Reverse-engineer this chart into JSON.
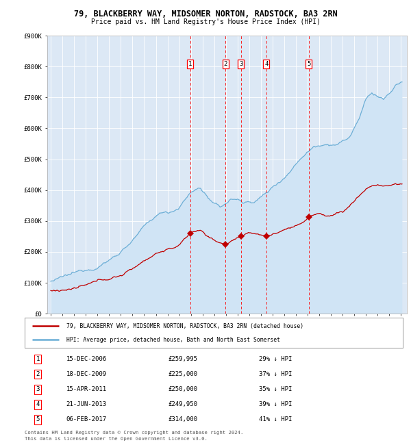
{
  "title": "79, BLACKBERRY WAY, MIDSOMER NORTON, RADSTOCK, BA3 2RN",
  "subtitle": "Price paid vs. HM Land Registry's House Price Index (HPI)",
  "legend_line1": "79, BLACKBERRY WAY, MIDSOMER NORTON, RADSTOCK, BA3 2RN (detached house)",
  "legend_line2": "HPI: Average price, detached house, Bath and North East Somerset",
  "footnote1": "Contains HM Land Registry data © Crown copyright and database right 2024.",
  "footnote2": "This data is licensed under the Open Government Licence v3.0.",
  "hpi_color": "#6baed6",
  "hpi_fill_color": "#d0e4f5",
  "price_color": "#c00000",
  "background_color": "#dce8f5",
  "transactions": [
    {
      "num": 1,
      "price": 259995,
      "x_year": 2006.96
    },
    {
      "num": 2,
      "price": 225000,
      "x_year": 2009.96
    },
    {
      "num": 3,
      "price": 250000,
      "x_year": 2011.29
    },
    {
      "num": 4,
      "price": 249950,
      "x_year": 2013.47
    },
    {
      "num": 5,
      "price": 314000,
      "x_year": 2017.1
    }
  ],
  "table_rows": [
    [
      "1",
      "15-DEC-2006",
      "£259,995",
      "29% ↓ HPI"
    ],
    [
      "2",
      "18-DEC-2009",
      "£225,000",
      "37% ↓ HPI"
    ],
    [
      "3",
      "15-APR-2011",
      "£250,000",
      "35% ↓ HPI"
    ],
    [
      "4",
      "21-JUN-2013",
      "£249,950",
      "39% ↓ HPI"
    ],
    [
      "5",
      "06-FEB-2017",
      "£314,000",
      "41% ↓ HPI"
    ]
  ],
  "ylim": [
    0,
    900000
  ],
  "yticks": [
    0,
    100000,
    200000,
    300000,
    400000,
    500000,
    600000,
    700000,
    800000,
    900000
  ],
  "ytick_labels": [
    "£0",
    "£100K",
    "£200K",
    "£300K",
    "£400K",
    "£500K",
    "£600K",
    "£700K",
    "£800K",
    "£900K"
  ],
  "xlim_start": 1994.7,
  "xlim_end": 2025.5
}
